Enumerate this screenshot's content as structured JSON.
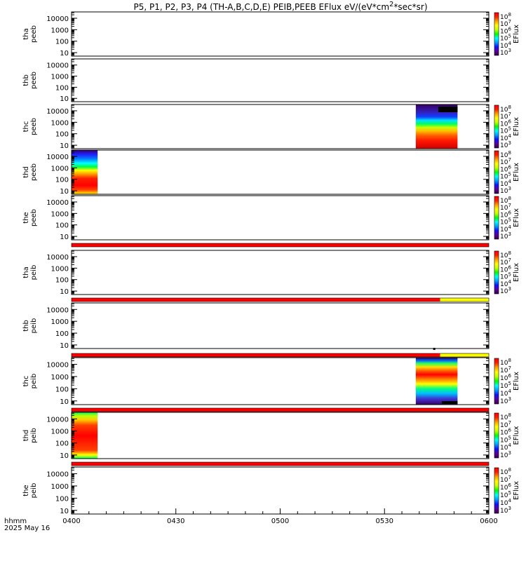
{
  "chart_data": {
    "type": "heatmap",
    "title_html": "P5, P1, P2, P3, P4 (TH-A,B,C,D,E) PEIB,PEEB EFlux eV/(eV*cm<sup>2</sup>*sec*sr)",
    "title": "P5, P1, P2, P3, P4 (TH-A,B,C,D,E) PEIB,PEEB EFlux eV/(eV*cm2*sec*sr)",
    "x_axis": {
      "label_line1": "hhmm",
      "label_line2": "2025 May 16",
      "ticks": [
        "0400",
        "0430",
        "0500",
        "0530",
        "0600"
      ],
      "range_minutes": [
        0,
        120
      ]
    },
    "y_ticks": [
      "10000",
      "1000",
      "100",
      "10"
    ],
    "colorbar_label": "EFlux",
    "colorscale": [
      "#3a0048",
      "#5a00a0",
      "#1010ff",
      "#00a0ff",
      "#00ffff",
      "#00ff00",
      "#c8ff00",
      "#ffff00",
      "#ffa000",
      "#ff2000",
      "#ff0000"
    ],
    "panels": [
      {
        "probe": "tha",
        "product": "peeb",
        "colorbar_ticks": [
          "10^8",
          "10^7",
          "10^6",
          "10^5",
          "10^4",
          "10^3"
        ],
        "data_blocks": []
      },
      {
        "probe": "thb",
        "product": "peeb",
        "colorbar_ticks": null,
        "data_blocks": []
      },
      {
        "probe": "thc",
        "product": "peeb",
        "colorbar_ticks": [
          "10^8",
          "10^7",
          "10^6",
          "10^5",
          "10^4",
          "10^3"
        ],
        "data_blocks": [
          {
            "t_start": 99,
            "t_end": 111,
            "profile": "electron_c"
          }
        ]
      },
      {
        "probe": "thd",
        "product": "peeb",
        "colorbar_ticks": [
          "10^8",
          "10^7",
          "10^6",
          "10^5",
          "10^4",
          "10^3"
        ],
        "data_blocks": [
          {
            "t_start": 0,
            "t_end": 7.5,
            "profile": "electron_d"
          }
        ]
      },
      {
        "probe": "the",
        "product": "peeb",
        "colorbar_ticks": [
          "10^8",
          "10^7",
          "10^6",
          "10^5",
          "10^4",
          "10^3"
        ],
        "data_blocks": []
      },
      {
        "probe": "tha",
        "product": "peib",
        "colorbar_ticks": [
          "10^8",
          "10^7",
          "10^6",
          "10^5",
          "10^4",
          "10^3"
        ],
        "data_blocks": [],
        "top_bar": [
          {
            "t_start": 0,
            "t_end": 120,
            "color": "#ff0000"
          }
        ]
      },
      {
        "probe": "thb",
        "product": "peib",
        "colorbar_ticks": null,
        "data_blocks": [],
        "top_bar": [
          {
            "t_start": 0,
            "t_end": 106,
            "color": "#ff0000"
          },
          {
            "t_start": 106,
            "t_end": 120,
            "color": "#ffff00"
          }
        ]
      },
      {
        "probe": "thc",
        "product": "peib",
        "colorbar_ticks": [
          "10^8",
          "10^7",
          "10^6",
          "10^5",
          "10^4",
          "10^3"
        ],
        "data_blocks": [
          {
            "t_start": 99,
            "t_end": 111,
            "profile": "ion_c"
          }
        ],
        "top_bar": [
          {
            "t_start": 0,
            "t_end": 106,
            "color": "#ff0000"
          },
          {
            "t_start": 106,
            "t_end": 120,
            "color": "#ffff00"
          }
        ]
      },
      {
        "probe": "thd",
        "product": "peib",
        "colorbar_ticks": [
          "10^8",
          "10^7",
          "10^6",
          "10^5",
          "10^4",
          "10^3"
        ],
        "data_blocks": [
          {
            "t_start": 0,
            "t_end": 7.5,
            "profile": "ion_d"
          }
        ],
        "top_bar": [
          {
            "t_start": 0,
            "t_end": 120,
            "color": "#ff0000"
          }
        ]
      },
      {
        "probe": "the",
        "product": "peib",
        "colorbar_ticks": [
          "10^8",
          "10^7",
          "10^6",
          "10^5",
          "10^4",
          "10^3"
        ],
        "data_blocks": [],
        "top_bar": [
          {
            "t_start": 0,
            "t_end": 120,
            "color": "#ff0000"
          }
        ]
      }
    ]
  }
}
